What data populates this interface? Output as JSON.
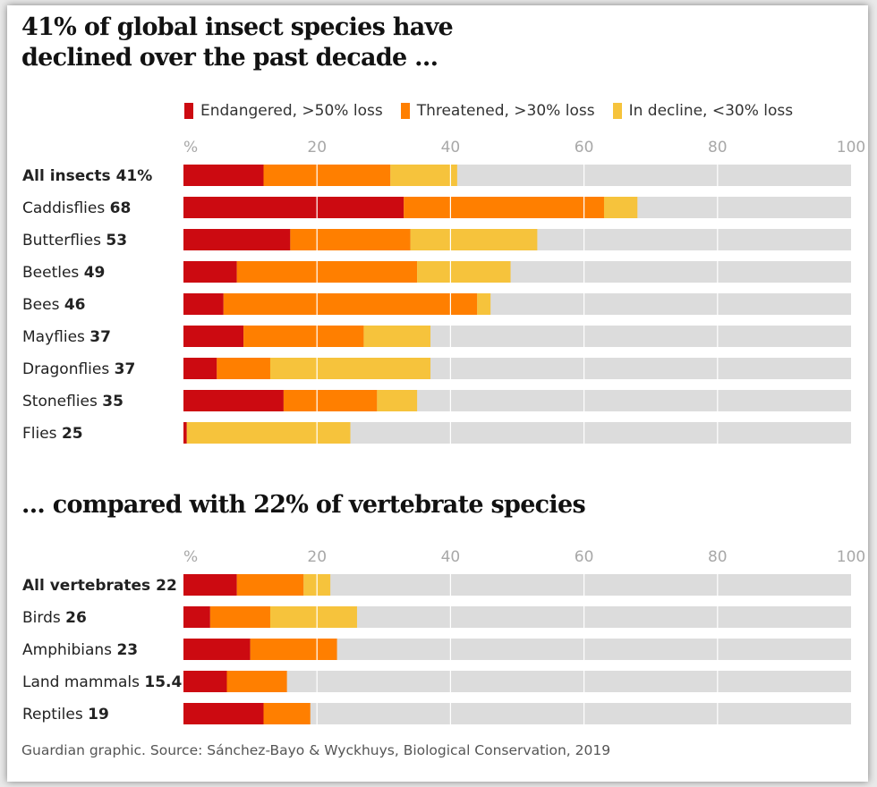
{
  "colors": {
    "endangered": "#cc0a11",
    "threatened": "#ff7f00",
    "decline": "#f6c33c",
    "remainder": "#dcdcdc"
  },
  "legend": [
    {
      "label": "Endangered, >50% loss",
      "color": "#cc0a11"
    },
    {
      "label": "Threatened, >30% loss",
      "color": "#ff7f00"
    },
    {
      "label": "In decline, <30% loss",
      "color": "#f6c33c"
    }
  ],
  "footer": "Guardian graphic. Source: Sánchez-Bayo & Wyckhuys, Biological Conservation, 2019",
  "chart_data": [
    {
      "type": "bar",
      "orientation": "horizontal",
      "stacked": true,
      "title": "41% of global insect species have declined over the past decade ...",
      "xlim": [
        0,
        100
      ],
      "ticks": [
        "%",
        "20",
        "40",
        "60",
        "80",
        "100"
      ],
      "tick_values": [
        0,
        20,
        40,
        60,
        80,
        100
      ],
      "categories": [
        {
          "name": "All insects",
          "total": "41%",
          "bold": true
        },
        {
          "name": "Caddisflies",
          "total": "68",
          "bold": false
        },
        {
          "name": "Butterflies",
          "total": "53",
          "bold": false
        },
        {
          "name": "Beetles",
          "total": "49",
          "bold": false
        },
        {
          "name": "Bees",
          "total": "46",
          "bold": false
        },
        {
          "name": "Mayflies",
          "total": "37",
          "bold": false
        },
        {
          "name": "Dragonflies",
          "total": "37",
          "bold": false
        },
        {
          "name": "Stoneflies",
          "total": "35",
          "bold": false
        },
        {
          "name": "Flies",
          "total": "25",
          "bold": false
        }
      ],
      "series": [
        {
          "name": "Endangered, >50% loss",
          "values": [
            12,
            33,
            16,
            8,
            6,
            9,
            5,
            15,
            0.5
          ]
        },
        {
          "name": "Threatened, >30% loss",
          "values": [
            19,
            30,
            18,
            27,
            38,
            18,
            8,
            14,
            0
          ]
        },
        {
          "name": "In decline, <30% loss",
          "values": [
            10,
            5,
            19,
            14,
            2,
            10,
            24,
            6,
            24.5
          ]
        }
      ]
    },
    {
      "type": "bar",
      "orientation": "horizontal",
      "stacked": true,
      "title": "... compared with 22% of vertebrate species",
      "xlim": [
        0,
        100
      ],
      "ticks": [
        "%",
        "20",
        "40",
        "60",
        "80",
        "100"
      ],
      "tick_values": [
        0,
        20,
        40,
        60,
        80,
        100
      ],
      "categories": [
        {
          "name": "All vertebrates",
          "total": "22",
          "bold": true
        },
        {
          "name": "Birds",
          "total": "26",
          "bold": false
        },
        {
          "name": "Amphibians",
          "total": "23",
          "bold": false
        },
        {
          "name": "Land mammals",
          "total": "15.4",
          "bold": false
        },
        {
          "name": "Reptiles",
          "total": "19",
          "bold": false
        }
      ],
      "series": [
        {
          "name": "Endangered, >50% loss",
          "values": [
            8,
            4,
            10,
            6.5,
            12
          ]
        },
        {
          "name": "Threatened, >30% loss",
          "values": [
            10,
            9,
            13,
            9,
            7
          ]
        },
        {
          "name": "In decline, <30% loss",
          "values": [
            4,
            13,
            0,
            0,
            0
          ]
        }
      ]
    }
  ]
}
